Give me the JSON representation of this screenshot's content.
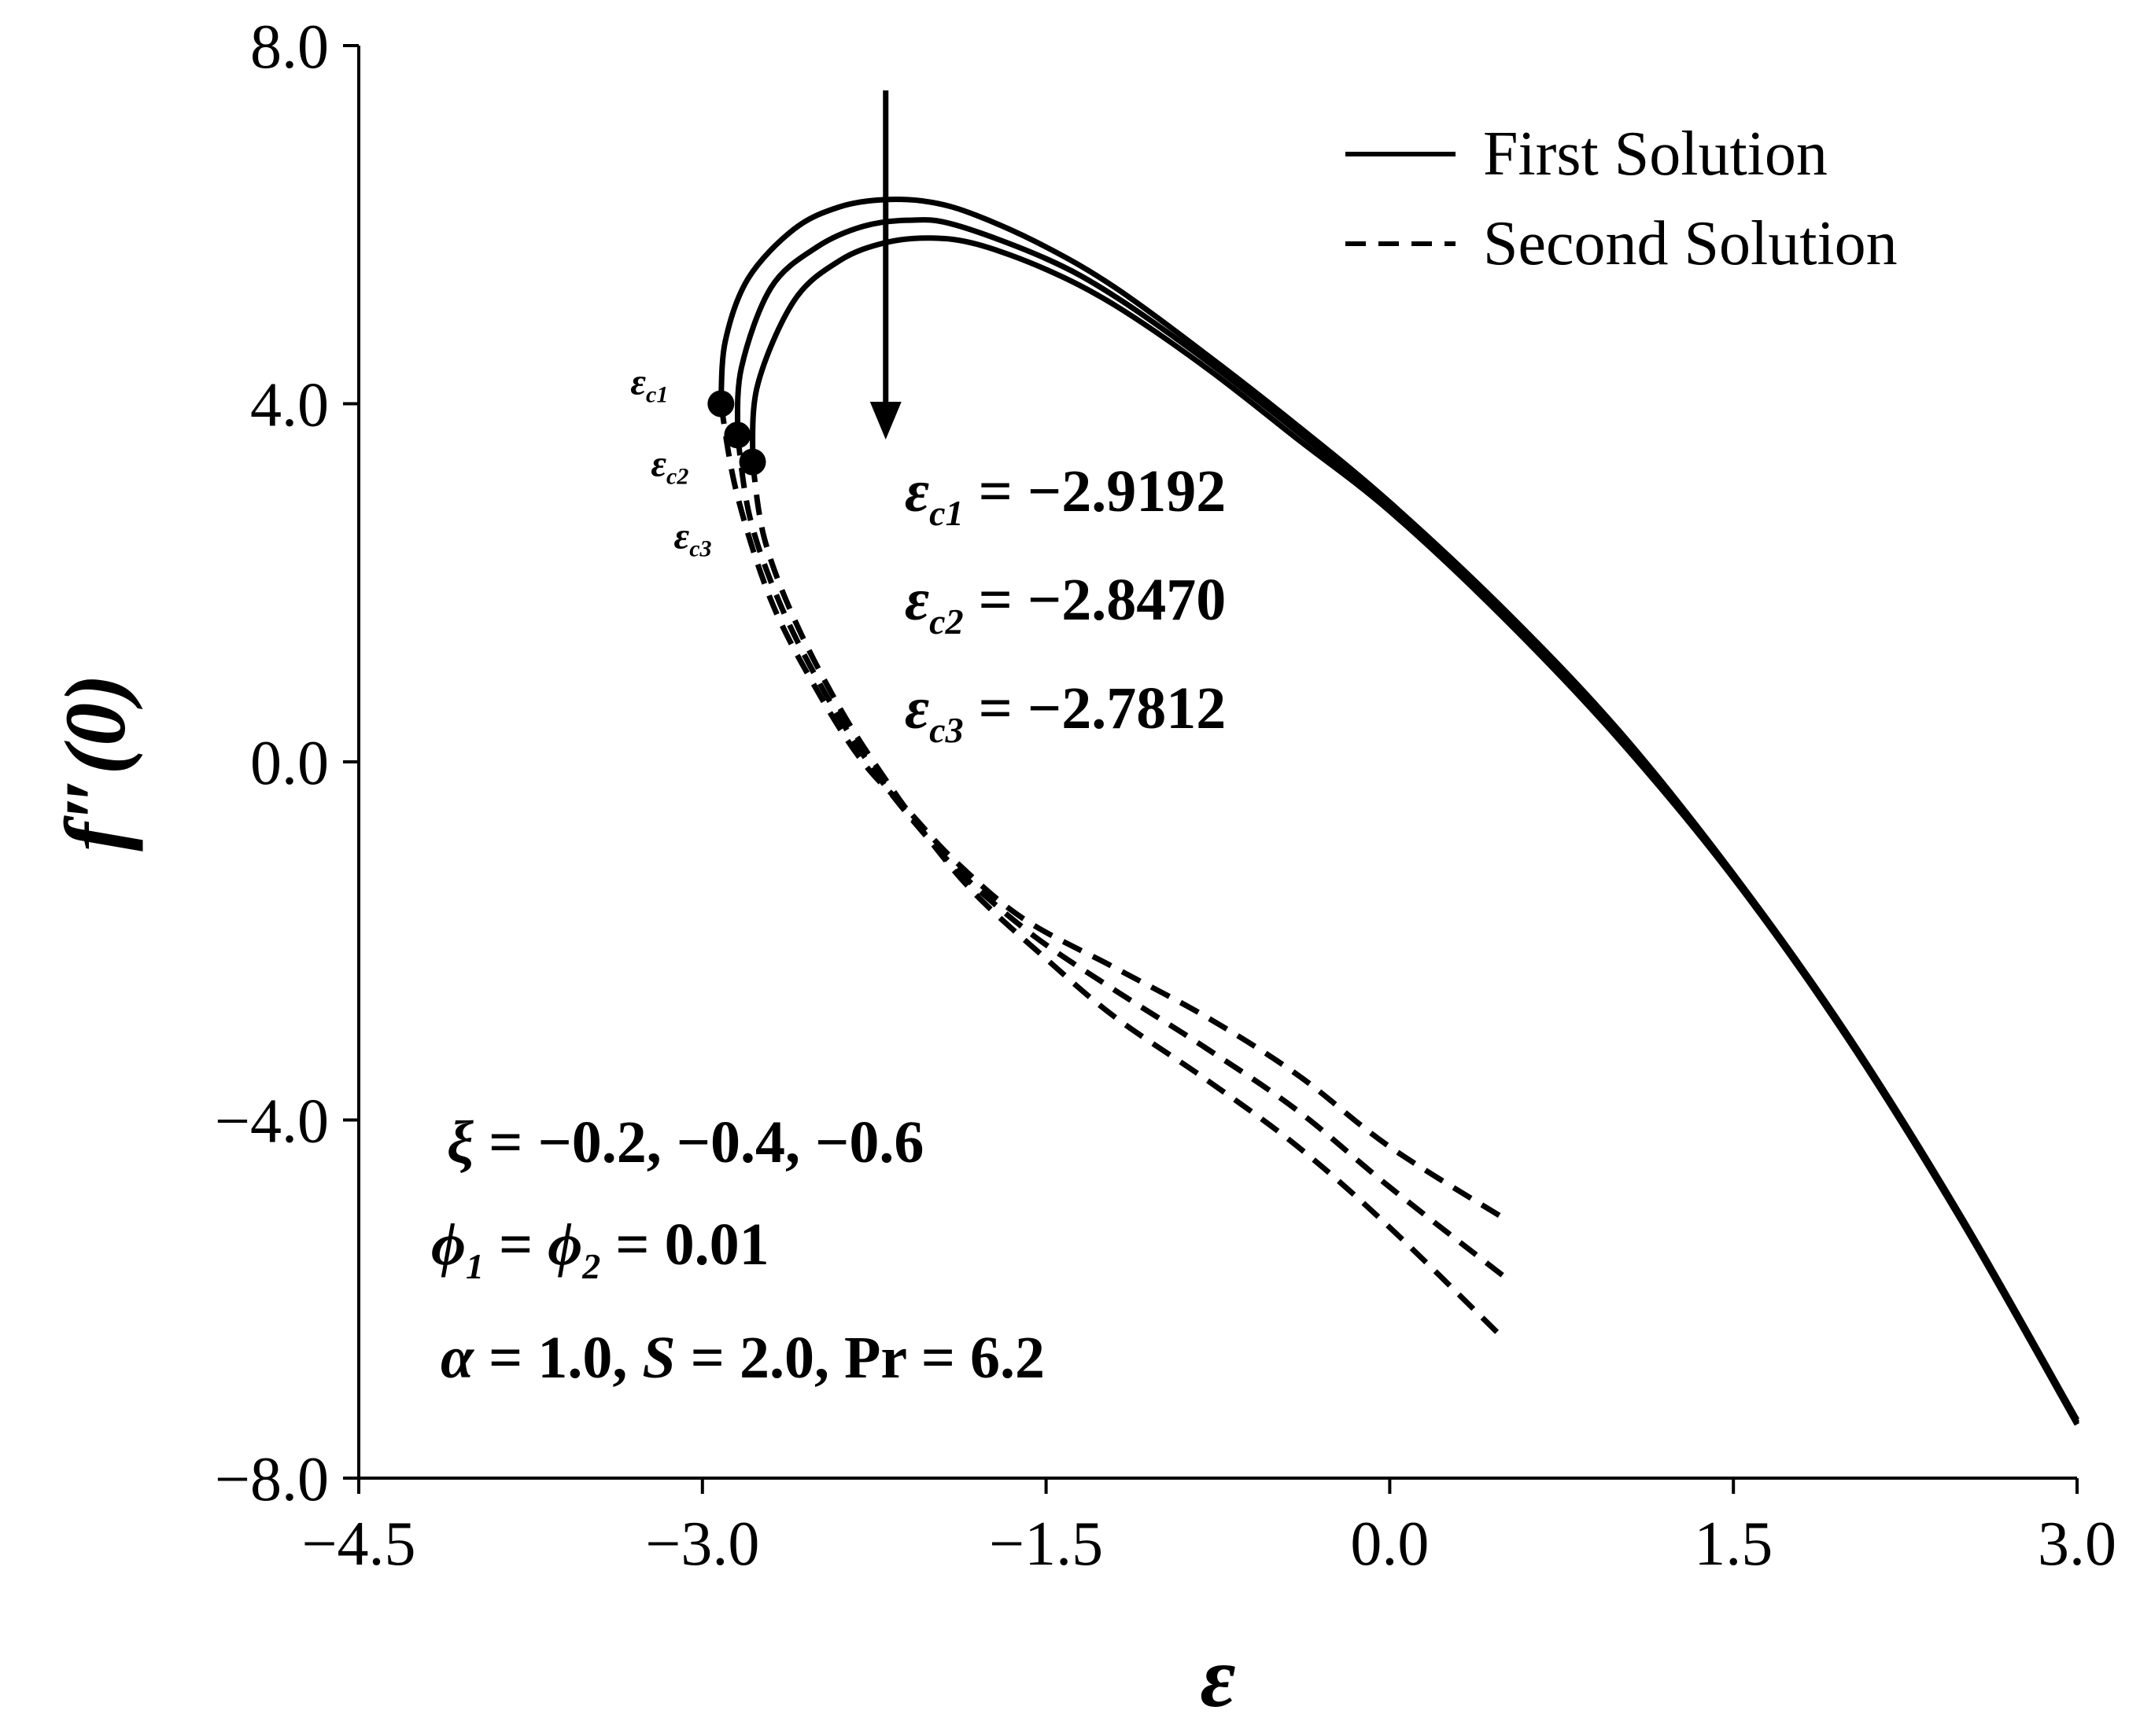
{
  "chart_data": {
    "type": "line",
    "title": "",
    "xlabel": "ε",
    "ylabel": "f″(0)",
    "xlim": [
      -4.5,
      3.0
    ],
    "ylim": [
      -8.0,
      8.0
    ],
    "xticks": [
      -4.5,
      -3.0,
      -1.5,
      0.0,
      1.5,
      3.0
    ],
    "xtick_labels": [
      "−4.5",
      "−3.0",
      "−1.5",
      "0.0",
      "1.5",
      "3.0"
    ],
    "yticks": [
      -8.0,
      -4.0,
      0.0,
      4.0,
      8.0
    ],
    "ytick_labels": [
      "−8.0",
      "−4.0",
      "0.0",
      "4.0",
      "8.0"
    ],
    "legend": {
      "placement": "top-right",
      "entries": [
        {
          "label": "First Solution",
          "style": "solid"
        },
        {
          "label": "Second Solution",
          "style": "dashed"
        }
      ]
    },
    "series": [
      {
        "name": "First Solution, ξ = −0.2",
        "style": "solid",
        "x": [
          -2.9192,
          -2.9,
          -2.8,
          -2.6,
          -2.4,
          -2.2,
          -2.0,
          -1.8,
          -1.5,
          -1.2,
          -0.8,
          -0.4,
          0.0,
          0.5,
          1.0,
          1.5,
          2.0,
          2.5,
          3.0
        ],
        "y": [
          4.0,
          4.7,
          5.4,
          5.95,
          6.2,
          6.28,
          6.25,
          6.1,
          5.75,
          5.3,
          4.55,
          3.75,
          2.9,
          1.7,
          0.35,
          -1.25,
          -3.05,
          -5.1,
          -7.35
        ]
      },
      {
        "name": "First Solution, ξ = −0.4",
        "style": "solid",
        "x": [
          -2.847,
          -2.83,
          -2.7,
          -2.5,
          -2.3,
          -2.1,
          -1.9,
          -1.5,
          -1.2,
          -0.8,
          -0.4,
          0.0,
          0.5,
          1.0,
          1.5,
          2.0,
          2.5,
          3.0
        ],
        "y": [
          3.65,
          4.4,
          5.3,
          5.75,
          5.98,
          6.05,
          6.0,
          5.62,
          5.2,
          4.48,
          3.68,
          2.85,
          1.65,
          0.3,
          -1.28,
          -3.08,
          -5.12,
          -7.38
        ]
      },
      {
        "name": "First Solution, ξ = −0.6",
        "style": "solid",
        "x": [
          -2.7812,
          -2.76,
          -2.6,
          -2.4,
          -2.2,
          -2.0,
          -1.8,
          -1.5,
          -1.2,
          -0.8,
          -0.4,
          0.0,
          0.5,
          1.0,
          1.5,
          2.0,
          2.5,
          3.0
        ],
        "y": [
          3.35,
          4.2,
          5.15,
          5.6,
          5.8,
          5.85,
          5.78,
          5.5,
          5.1,
          4.4,
          3.6,
          2.8,
          1.6,
          0.25,
          -1.3,
          -3.1,
          -5.15,
          -7.4
        ]
      },
      {
        "name": "Second Solution, ξ = −0.2",
        "style": "dashed",
        "x": [
          -2.9192,
          -2.85,
          -2.7,
          -2.5,
          -2.3,
          -2.1,
          -1.9,
          -1.6,
          -1.2,
          -0.8,
          -0.4,
          0.0,
          0.5
        ],
        "y": [
          4.0,
          3.0,
          1.8,
          0.8,
          0.0,
          -0.55,
          -1.1,
          -1.75,
          -2.3,
          -2.85,
          -3.5,
          -4.3,
          -5.1
        ]
      },
      {
        "name": "Second Solution, ξ = −0.4",
        "style": "dashed",
        "x": [
          -2.847,
          -2.79,
          -2.65,
          -2.45,
          -2.25,
          -2.05,
          -1.85,
          -1.55,
          -1.2,
          -0.8,
          -0.4,
          0.0,
          0.5
        ],
        "y": [
          3.65,
          2.7,
          1.7,
          0.7,
          -0.1,
          -0.75,
          -1.3,
          -1.95,
          -2.55,
          -3.2,
          -3.9,
          -4.75,
          -5.75
        ]
      },
      {
        "name": "Second Solution, ξ = −0.6",
        "style": "dashed",
        "x": [
          -2.7812,
          -2.73,
          -2.6,
          -2.4,
          -2.2,
          -2.0,
          -1.8,
          -1.5,
          -1.2,
          -0.8,
          -0.4,
          0.0,
          0.5
        ],
        "y": [
          3.35,
          2.5,
          1.6,
          0.6,
          -0.2,
          -0.9,
          -1.5,
          -2.2,
          -2.85,
          -3.55,
          -4.3,
          -5.2,
          -6.45
        ]
      }
    ],
    "critical_points": [
      {
        "tag": "ε",
        "sub": "c1",
        "x": -2.9192,
        "y": 4.0
      },
      {
        "tag": "ε",
        "sub": "c2",
        "x": -2.847,
        "y": 3.65
      },
      {
        "tag": "ε",
        "sub": "c3",
        "x": -2.7812,
        "y": 3.35
      }
    ],
    "arrow": {
      "x": -2.2,
      "y_from": 7.5,
      "y_to": 3.6
    },
    "annotations": {
      "crit": [
        {
          "sym": "ε",
          "sub": "c1",
          "value": " = −2.9192"
        },
        {
          "sym": "ε",
          "sub": "c2",
          "value": " = −2.8470"
        },
        {
          "sym": "ε",
          "sub": "c3",
          "value": " = −2.7812"
        }
      ],
      "params": {
        "xi": {
          "sym": "ξ",
          "value": " = −0.2, −0.4, −0.6"
        },
        "phi": {
          "sym1": "ϕ",
          "sub1": "1",
          "mid": " = ",
          "sym2": "ϕ",
          "sub2": "2",
          "value": " = 0.01"
        },
        "alpha": {
          "sym": "α",
          "v1": " = 1.0, ",
          "s": "S",
          "v2": " = 2.0, Pr = 6.2"
        }
      }
    }
  }
}
